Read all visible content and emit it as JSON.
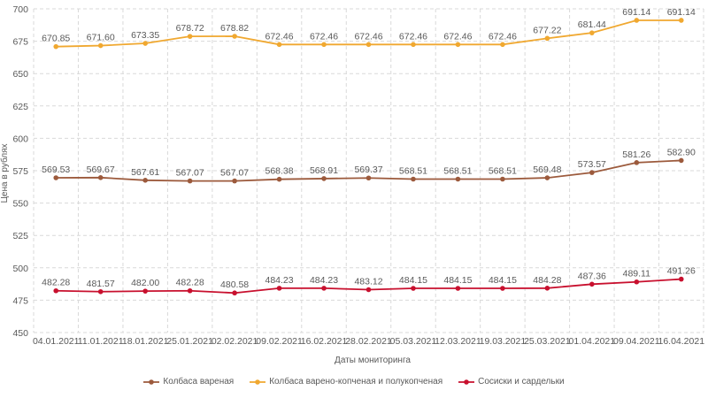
{
  "chart_data": {
    "type": "line",
    "xlabel": "Даты мониторинга",
    "ylabel": "Цена в рублях",
    "ylim": [
      450,
      700
    ],
    "yticks": [
      450,
      475,
      500,
      525,
      550,
      575,
      600,
      625,
      650,
      675,
      700
    ],
    "grid": true,
    "legend_position": "bottom",
    "categories": [
      "04.01.2021",
      "11.01.2021",
      "18.01.2021",
      "25.01.2021",
      "02.02.2021",
      "09.02.2021",
      "16.02.2021",
      "28.02.2021",
      "05.03.2021",
      "12.03.2021",
      "19.03.2021",
      "25.03.2021",
      "01.04.2021",
      "09.04.2021",
      "16.04.2021"
    ],
    "series": [
      {
        "name": "Колбаса вареная",
        "color": "#9c5a3c",
        "values": [
          569.53,
          569.67,
          567.61,
          567.07,
          567.07,
          568.38,
          568.91,
          569.37,
          568.51,
          568.51,
          568.51,
          569.48,
          573.57,
          581.26,
          582.9
        ],
        "labels": [
          "569.53",
          "569.67",
          "567.61",
          "567.07",
          "567.07",
          "568.38",
          "568.91",
          "569.37",
          "568.51",
          "568.51",
          "568.51",
          "569.48",
          "573.57",
          "581.26",
          "582.90"
        ]
      },
      {
        "name": "Колбаса варено-копченая и полукопченая",
        "color": "#f0a830",
        "values": [
          670.85,
          671.6,
          673.35,
          678.72,
          678.82,
          672.46,
          672.46,
          672.46,
          672.46,
          672.46,
          672.46,
          677.22,
          681.44,
          691.14,
          691.14
        ],
        "labels": [
          "670.85",
          "671.60",
          "673.35",
          "678.72",
          "678.82",
          "672.46",
          "672.46",
          "672.46",
          "672.46",
          "672.46",
          "672.46",
          "677.22",
          "681.44",
          "691.14",
          "691.14"
        ]
      },
      {
        "name": "Сосиски и сардельки",
        "color": "#c8102e",
        "values": [
          482.28,
          481.57,
          482.0,
          482.28,
          480.58,
          484.23,
          484.23,
          483.12,
          484.15,
          484.15,
          484.15,
          484.28,
          487.36,
          489.11,
          491.26
        ],
        "labels": [
          "482.28",
          "481.57",
          "482.00",
          "482.28",
          "480.58",
          "484.23",
          "484.23",
          "483.12",
          "484.15",
          "484.15",
          "484.15",
          "484.28",
          "487.36",
          "489.11",
          "491.26"
        ]
      }
    ]
  }
}
